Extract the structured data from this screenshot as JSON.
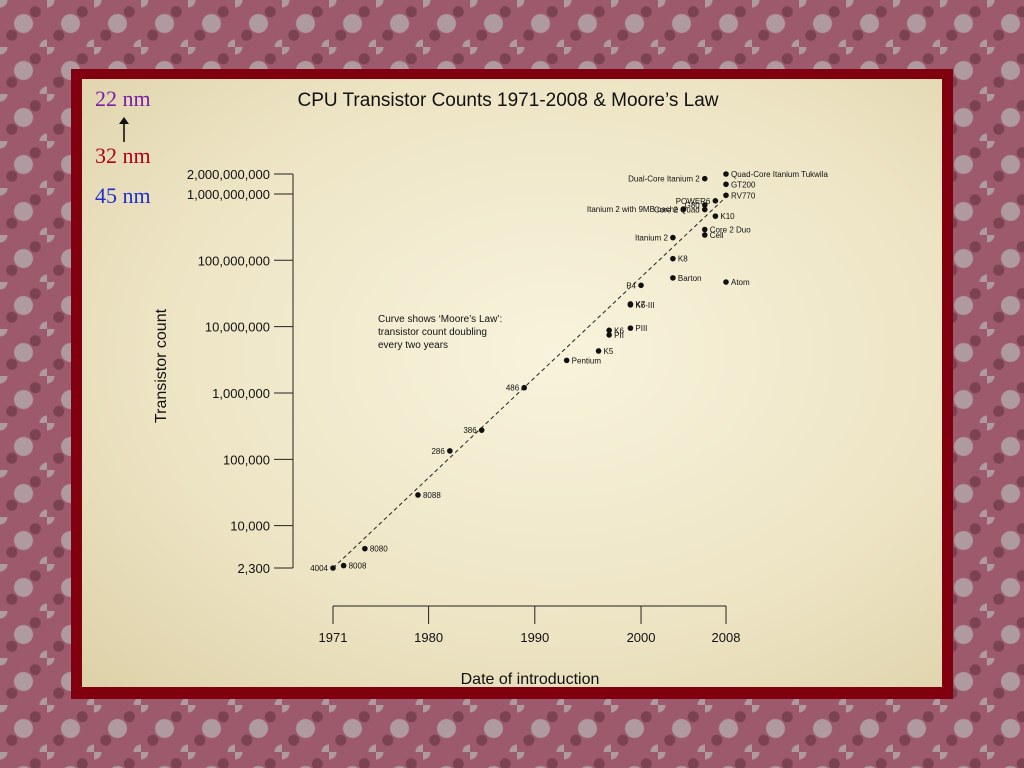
{
  "process_nodes": [
    {
      "label": "22 nm",
      "color": "#7b1fa8"
    },
    {
      "label": "32 nm",
      "color": "#b00018"
    },
    {
      "label": "45 nm",
      "color": "#1d2fd0"
    }
  ],
  "chart_data": {
    "type": "scatter",
    "title": "CPU Transistor Counts 1971-2008 & Moore’s Law",
    "xlabel": "Date of introduction",
    "ylabel": "Transistor count",
    "y_scale": "log",
    "xlim": [
      1971,
      2008
    ],
    "ylim": [
      2300,
      2000000000
    ],
    "x_ticks": [
      {
        "value": 1971,
        "label": "1971"
      },
      {
        "value": 1980,
        "label": "1980"
      },
      {
        "value": 1990,
        "label": "1990"
      },
      {
        "value": 2000,
        "label": "2000"
      },
      {
        "value": 2008,
        "label": "2008"
      }
    ],
    "y_ticks": [
      {
        "value": 2300,
        "label": "2,300"
      },
      {
        "value": 10000,
        "label": "10,000"
      },
      {
        "value": 100000,
        "label": "100,000"
      },
      {
        "value": 1000000,
        "label": "1,000,000"
      },
      {
        "value": 10000000,
        "label": "10,000,000"
      },
      {
        "value": 100000000,
        "label": "100,000,000"
      },
      {
        "value": 1000000000,
        "label": "1,000,000,000"
      },
      {
        "value": 2000000000,
        "label": "2,000,000,000"
      }
    ],
    "annotation": [
      "Curve shows ‘Moore’s Law’:",
      "transistor count doubling",
      "every two years"
    ],
    "trend": {
      "x": [
        1971,
        2008
      ],
      "y": [
        2300,
        900000000
      ]
    },
    "points": [
      {
        "name": "4004",
        "x": 1971,
        "y": 2300,
        "label_side": "left"
      },
      {
        "name": "8008",
        "x": 1972,
        "y": 2500,
        "label_side": "right"
      },
      {
        "name": "8080",
        "x": 1974,
        "y": 4500,
        "label_side": "right"
      },
      {
        "name": "8088",
        "x": 1979,
        "y": 29000,
        "label_side": "right"
      },
      {
        "name": "286",
        "x": 1982,
        "y": 134000,
        "label_side": "left"
      },
      {
        "name": "386",
        "x": 1985,
        "y": 275000,
        "label_side": "left"
      },
      {
        "name": "486",
        "x": 1989,
        "y": 1200000,
        "label_side": "left"
      },
      {
        "name": "Pentium",
        "x": 1993,
        "y": 3100000,
        "label_side": "right"
      },
      {
        "name": "K5",
        "x": 1996,
        "y": 4300000,
        "label_side": "right"
      },
      {
        "name": "K6",
        "x": 1997,
        "y": 8800000,
        "label_side": "right"
      },
      {
        "name": "PII",
        "x": 1997,
        "y": 7500000,
        "label_side": "right"
      },
      {
        "name": "PIII",
        "x": 1999,
        "y": 9500000,
        "label_side": "right"
      },
      {
        "name": "K6-III",
        "x": 1999,
        "y": 21300000,
        "label_side": "right"
      },
      {
        "name": "K7",
        "x": 1999,
        "y": 22000000,
        "label_side": "right"
      },
      {
        "name": "P4",
        "x": 2000,
        "y": 42000000,
        "label_side": "left"
      },
      {
        "name": "Barton",
        "x": 2003,
        "y": 54300000,
        "label_side": "right"
      },
      {
        "name": "K8",
        "x": 2003,
        "y": 105900000,
        "label_side": "right"
      },
      {
        "name": "Atom",
        "x": 2008,
        "y": 47000000,
        "label_side": "right"
      },
      {
        "name": "Itanium 2",
        "x": 2003,
        "y": 220000000,
        "label_side": "left"
      },
      {
        "name": "Cell",
        "x": 2006,
        "y": 241000000,
        "label_side": "right"
      },
      {
        "name": "Core 2 Duo",
        "x": 2006,
        "y": 291000000,
        "label_side": "right"
      },
      {
        "name": "Core 2 Quad",
        "x": 2006,
        "y": 582000000,
        "label_side": "left"
      },
      {
        "name": "K10",
        "x": 2007,
        "y": 463000000,
        "label_side": "right"
      },
      {
        "name": "Itanium 2 with 9MB cache",
        "x": 2004,
        "y": 592000000,
        "label_side": "left"
      },
      {
        "name": "G80",
        "x": 2006,
        "y": 681000000,
        "label_side": "left"
      },
      {
        "name": "POWER6",
        "x": 2007,
        "y": 789000000,
        "label_side": "left"
      },
      {
        "name": "RV770",
        "x": 2008,
        "y": 956000000,
        "label_side": "right"
      },
      {
        "name": "Dual-Core Itanium 2",
        "x": 2006,
        "y": 1700000000,
        "label_side": "left"
      },
      {
        "name": "GT200",
        "x": 2008,
        "y": 1400000000,
        "label_side": "right"
      },
      {
        "name": "Quad-Core Itanium Tukwila",
        "x": 2008,
        "y": 2000000000,
        "label_side": "right"
      }
    ]
  }
}
